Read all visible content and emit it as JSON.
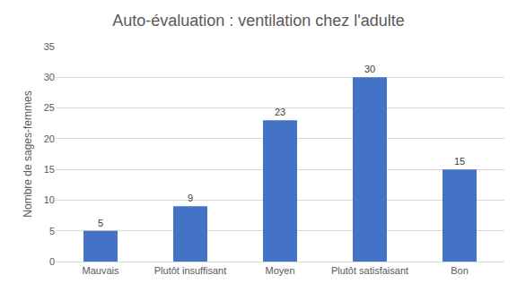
{
  "chart_data": {
    "type": "bar",
    "title": "Auto-évaluation : ventilation chez l'adulte",
    "y_label": "Nombre de sages-femmes",
    "categories": [
      "Mauvais",
      "Plutôt insuffisant",
      "Moyen",
      "Plutôt satisfaisant",
      "Bon"
    ],
    "values": [
      5,
      9,
      23,
      30,
      15
    ],
    "color": "#4472c4",
    "ylim": [
      0,
      35
    ],
    "yticks": [
      0,
      5,
      10,
      15,
      20,
      25,
      30,
      35
    ],
    "grid": true,
    "data_labels": true
  }
}
